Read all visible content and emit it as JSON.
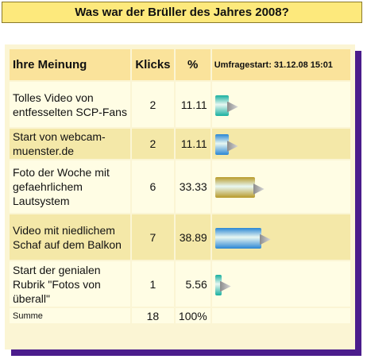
{
  "title": "Was war der Brüller des Jahres 2008?",
  "table": {
    "headers": {
      "option": "Ihre Meinung",
      "clicks": "Klicks",
      "percent": "%",
      "start": "Umfragestart: 31.12.08 15:01"
    },
    "rows": [
      {
        "label": "Tolles Video von entfesselten SCP-Fans",
        "clicks": "2",
        "percent": "11.11",
        "share": 11.11,
        "color": "#18b0a0"
      },
      {
        "label": "Start von webcam-muenster.de",
        "clicks": "2",
        "percent": "11.11",
        "share": 11.11,
        "color": "#2a86d4"
      },
      {
        "label": "Foto der Woche mit gefaehrlichem Lautsystem",
        "clicks": "6",
        "percent": "33.33",
        "share": 33.33,
        "color": "#b89a28"
      },
      {
        "label": "Video mit niedlichem Schaf auf dem Balkon",
        "clicks": "7",
        "percent": "38.89",
        "share": 38.89,
        "color": "#2a86d4"
      },
      {
        "label": "Start der genialen Rubrik \"Fotos von überall\"",
        "clicks": "1",
        "percent": "5.56",
        "share": 5.56,
        "color": "#18b0a0"
      }
    ],
    "total": {
      "label": "Summe",
      "clicks": "18",
      "percent": "100%"
    }
  }
}
